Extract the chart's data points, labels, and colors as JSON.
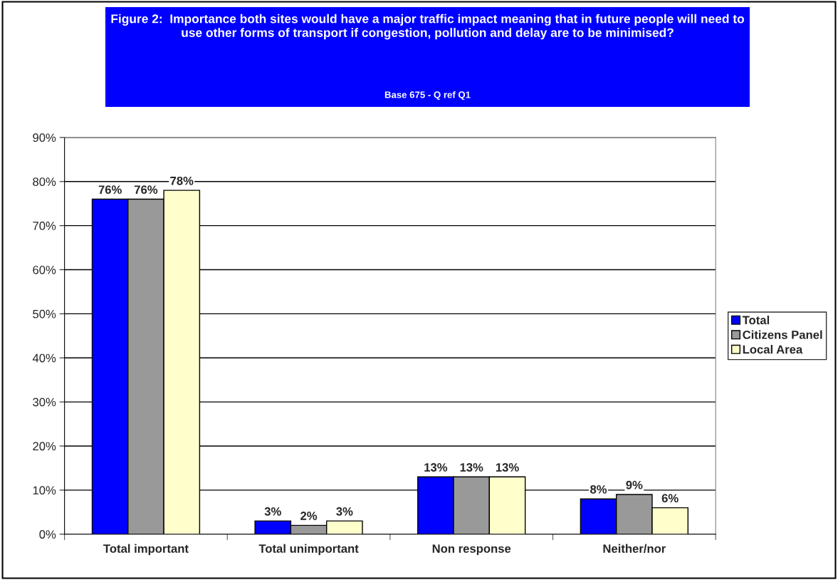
{
  "chart_data": {
    "type": "bar",
    "title": "Figure 2:  Importance both sites would have a major traffic impact meaning that in future people will need to use other forms of transport if congestion, pollution and delay are to be minimised?",
    "subtitle": "Base 675 - Q ref Q1",
    "categories": [
      "Total important",
      "Total unimportant",
      "Non response",
      "Neither/nor"
    ],
    "series": [
      {
        "name": "Total",
        "color": "#0000ff",
        "values": [
          76,
          3,
          13,
          8
        ],
        "value_labels": [
          "76%",
          "3%",
          "13%",
          "8%"
        ]
      },
      {
        "name": "Citizens Panel",
        "color": "#999999",
        "values": [
          76,
          2,
          13,
          9
        ],
        "value_labels": [
          "76%",
          "2%",
          "13%",
          "9%"
        ]
      },
      {
        "name": "Local Area",
        "color": "#ffffcc",
        "values": [
          78,
          3,
          13,
          6
        ],
        "value_labels": [
          "78%",
          "3%",
          "13%",
          "6%"
        ]
      }
    ],
    "ylim": [
      0,
      90
    ],
    "yticks": [
      {
        "value": 0,
        "label": "0%"
      },
      {
        "value": 10,
        "label": "10%"
      },
      {
        "value": 20,
        "label": "20%"
      },
      {
        "value": 30,
        "label": "30%"
      },
      {
        "value": 40,
        "label": "40%"
      },
      {
        "value": 50,
        "label": "50%"
      },
      {
        "value": 60,
        "label": "60%"
      },
      {
        "value": 70,
        "label": "70%"
      },
      {
        "value": 80,
        "label": "80%"
      },
      {
        "value": 90,
        "label": "90%"
      }
    ],
    "grid": "y",
    "legend": "right"
  }
}
